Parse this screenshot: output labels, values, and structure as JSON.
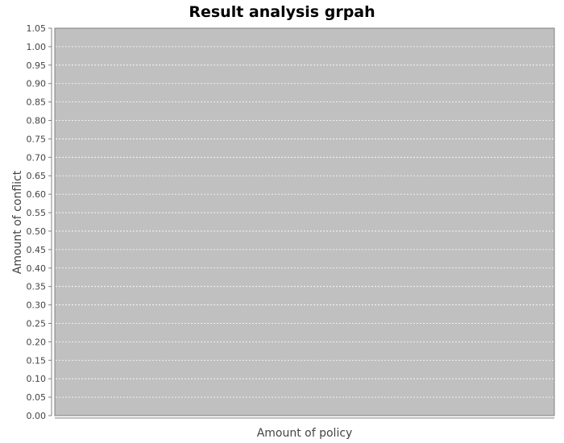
{
  "chart_data": {
    "type": "bar",
    "title": "Result analysis grpah",
    "xlabel": "Amount of policy",
    "ylabel": "Amount of conflict",
    "categories": [],
    "values": [],
    "ylim": [
      0,
      1.05
    ],
    "y_ticks": [
      "0.00",
      "0.05",
      "0.10",
      "0.15",
      "0.20",
      "0.25",
      "0.30",
      "0.35",
      "0.40",
      "0.45",
      "0.50",
      "0.55",
      "0.60",
      "0.65",
      "0.70",
      "0.75",
      "0.80",
      "0.85",
      "0.90",
      "0.95",
      "1.00",
      "1.05"
    ],
    "grid": true,
    "legend": "none",
    "colors": {
      "plot_background": "#c0c0c0",
      "gridline": "#ffffff",
      "axis": "#808080",
      "text": "#444444",
      "title": "#000000"
    }
  }
}
